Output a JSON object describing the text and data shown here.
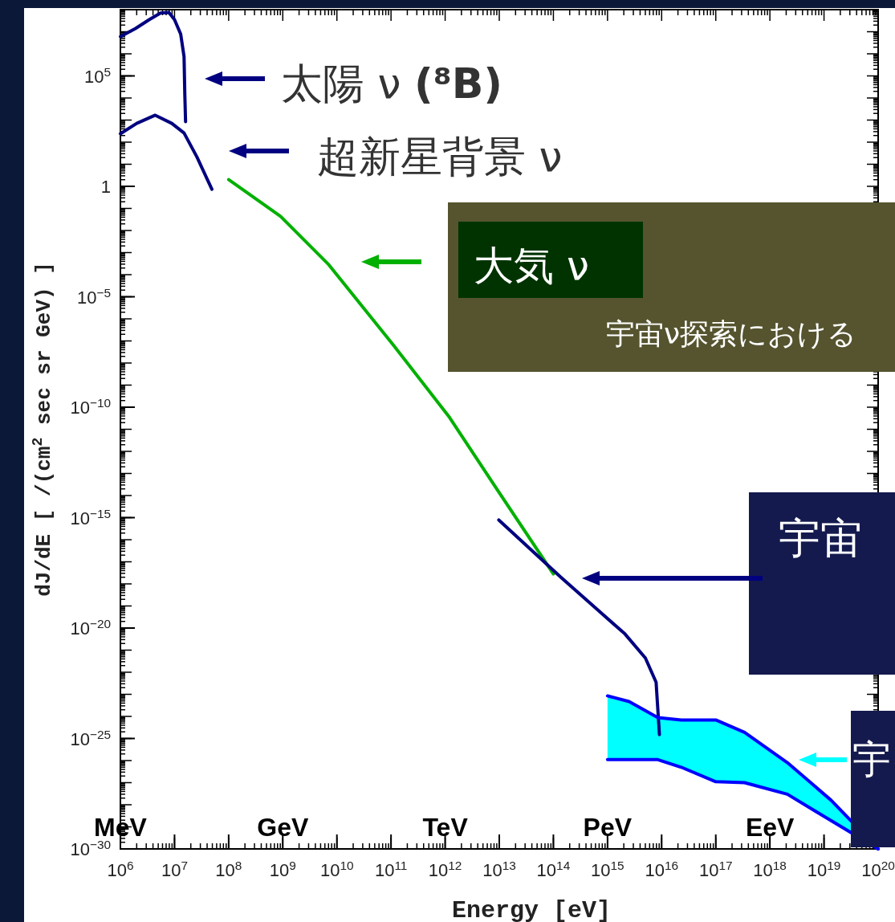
{
  "chart_data": {
    "type": "line",
    "xlabel": "Energy [eV]",
    "ylabel": "dJ/dE [ /(cm$^{2}$ sec sr GeV) ]",
    "log": "xy",
    "grid": false,
    "marker": "none",
    "line_style": "solid",
    "xlim": [
      1000000.0,
      1e+20
    ],
    "ylim": [
      1e-30,
      100000000.0
    ],
    "xticks": [
      {
        "value": 1000000.0,
        "label": "10$^{6}$"
      },
      {
        "value": 10000000.0,
        "label": "10$^{7}$"
      },
      {
        "value": 100000000.0,
        "label": "10$^{8}$"
      },
      {
        "value": 1000000000.0,
        "label": "10$^{9}$"
      },
      {
        "value": 10000000000.0,
        "label": "10$^{10}$"
      },
      {
        "value": 100000000000.0,
        "label": "10$^{11}$"
      },
      {
        "value": 1000000000000.0,
        "label": "10$^{12}$"
      },
      {
        "value": 10000000000000.0,
        "label": "10$^{13}$"
      },
      {
        "value": 100000000000000.0,
        "label": "10$^{14}$"
      },
      {
        "value": 1000000000000000.0,
        "label": "10$^{15}$"
      },
      {
        "value": 1e+16,
        "label": "10$^{16}$"
      },
      {
        "value": 1e+17,
        "label": "10$^{17}$"
      },
      {
        "value": 1e+18,
        "label": "10$^{18}$"
      },
      {
        "value": 1e+19,
        "label": "10$^{19}$"
      },
      {
        "value": 1e+20,
        "label": "10$^{20}$"
      }
    ],
    "yticks": [
      {
        "value": 100000.0,
        "label": "10$^{5}$"
      },
      1,
      {
        "value": 1e-05,
        "label": "10$^{−5}$"
      },
      {
        "value": 1e-10,
        "label": "10$^{−10}$"
      },
      {
        "value": 1e-15,
        "label": "10$^{−15}$"
      },
      {
        "value": 1e-20,
        "label": "10$^{−20}$"
      },
      {
        "value": 1e-25,
        "label": "10$^{−25}$"
      },
      {
        "value": 1e-30,
        "label": "10$^{−30}$"
      }
    ],
    "series": [
      {
        "type": "line",
        "color": "#000080",
        "x": [
          1000000.0,
          1900000.0,
          3400000.0,
          5500000.0,
          7900000.0,
          10000000.0,
          13000000.0,
          15000000.0,
          15500000.0,
          16000000.0
        ],
        "values": [
          6000000.0,
          14000000.0,
          35000000.0,
          70000000.0,
          74000000.0,
          35000000.0,
          7800000.0,
          740000.0,
          14000.0,
          850.0
        ]
      },
      {
        "type": "line",
        "color": "#000080",
        "x": [
          1000000.0,
          2000000.0,
          4400000.0,
          8900000.0,
          15000000.0,
          26000000.0,
          49000000.0
        ],
        "values": [
          240,
          710,
          1660,
          710,
          260,
          21,
          0.74
        ]
      },
      {
        "type": "line",
        "color": "#00b000",
        "x": [
          100000000.0,
          910000000.0,
          7100000000.0,
          110000000000.0,
          1200000000000.0,
          9100000000000.0,
          100000000000000.0
        ],
        "values": [
          2.0,
          0.044,
          0.00028,
          6.6e-08,
          3.5e-11,
          1.9e-14,
          2.8e-18
        ]
      },
      {
        "type": "line",
        "color": "#000080",
        "x": [
          9800000000000.0,
          140000000000000.0,
          2100000000000000.0,
          5000000000000000.0,
          7900000000000000.0,
          9100000000000000.0
        ],
        "values": [
          7.8e-16,
          1.9e-18,
          5.4e-21,
          4.4e-22,
          3.5e-23,
          1.5e-25
        ]
      },
      {
        "type": "line",
        "color": "#0000ff",
        "x": [
          1000000000000000.0,
          2500000000000000.0,
          8500000000000000.0,
          2.3e+16,
          1e+17,
          3.4e+17,
          2.1e+18,
          1.35e+19,
          1e+20
        ],
        "values": [
          8.5e-24,
          4.7e-24,
          8.9e-25,
          6.9e-25,
          6.9e-25,
          1.9e-25,
          8.1e-27,
          1.6e-28,
          1e-30
        ],
        "lower": [
          1.1e-26,
          1.1e-26,
          1.1e-26,
          5e-27,
          1.1e-27,
          1e-27,
          3e-28,
          1.9e-29,
          1e-30
        ],
        "upper": [
          8.5e-24,
          4.7e-24,
          8.9e-25,
          6.9e-25,
          6.9e-25,
          1.9e-25,
          8.1e-27,
          1.6e-28,
          1e-30
        ]
      },
      {
        "type": "line",
        "color": "#0000ff",
        "x": [
          1000000000000000.0,
          2500000000000000.0,
          8500000000000000.0,
          2.3e+16,
          1e+17,
          3.4e+17,
          2.1e+18,
          1.35e+19,
          1e+20
        ],
        "values": [
          1.1e-26,
          1.1e-26,
          1.1e-26,
          5e-27,
          1.1e-27,
          1e-27,
          3e-28,
          1.9e-29,
          1e-30
        ]
      }
    ],
    "annotations": [
      "太陽 ν **(⁸B)**",
      "超新星背景 ν",
      "大気 ν",
      "宇宙ν探索における",
      "宇宙",
      "宇",
      "MeV",
      "GeV",
      "TeV",
      "PeV",
      "EeV"
    ]
  }
}
